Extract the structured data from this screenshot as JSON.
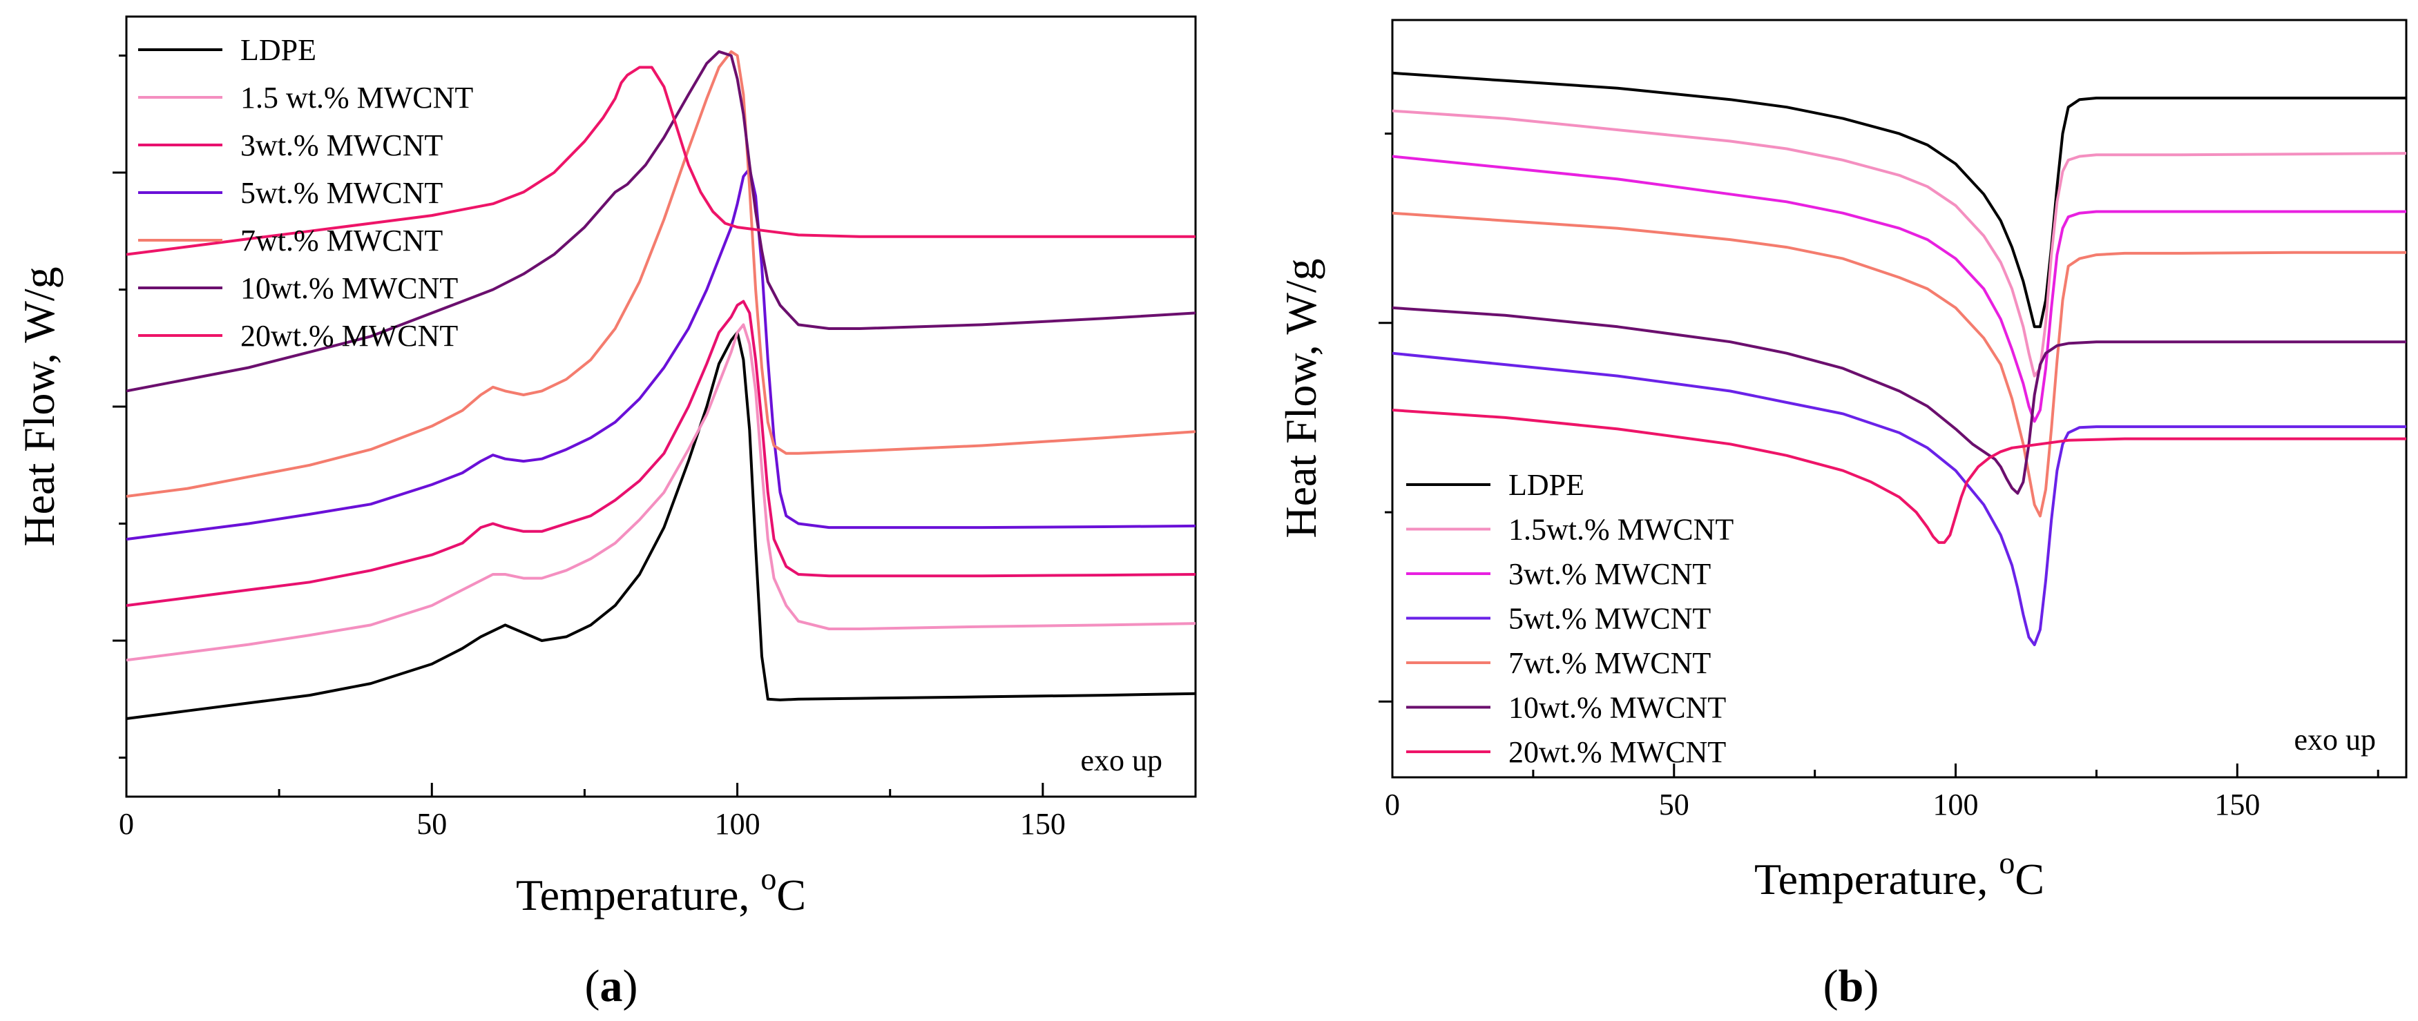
{
  "chart_data": [
    {
      "type": "line",
      "id": "panel-a",
      "panel_label": "(a)",
      "panel_label_parts": [
        "(",
        "a",
        ")"
      ],
      "xlabel": "Temperature, ",
      "xlabel_unit_sup": "o",
      "xlabel_unit": "C",
      "ylabel": "Heat Flow,  W/g",
      "xlim": [
        0,
        175
      ],
      "ylim": [
        0,
        10
      ],
      "x_ticks": [
        0,
        50,
        100,
        150
      ],
      "y_ticks": [
        2,
        5,
        8
      ],
      "y_tick_labels_shown": false,
      "annotation": "exo up",
      "legend_position": "top-left",
      "series": [
        {
          "name": "LDPE",
          "color": "#000000",
          "x": [
            0,
            10,
            20,
            30,
            40,
            50,
            55,
            58,
            62,
            65,
            68,
            72,
            76,
            80,
            84,
            88,
            92,
            95,
            97,
            99,
            100,
            101,
            102,
            103,
            104,
            105,
            107,
            110,
            120,
            140,
            160,
            175
          ],
          "y": [
            1.0,
            1.1,
            1.2,
            1.3,
            1.45,
            1.7,
            1.9,
            2.05,
            2.2,
            2.1,
            2.0,
            2.05,
            2.2,
            2.45,
            2.85,
            3.45,
            4.3,
            5.0,
            5.55,
            5.85,
            5.95,
            5.6,
            4.7,
            3.2,
            1.8,
            1.25,
            1.24,
            1.25,
            1.26,
            1.28,
            1.3,
            1.32
          ]
        },
        {
          "name": "1.5 wt.% MWCNT",
          "color": "#f48fc0",
          "x": [
            0,
            10,
            20,
            30,
            40,
            50,
            55,
            60,
            62,
            65,
            68,
            72,
            76,
            80,
            84,
            88,
            92,
            95,
            97,
            99,
            100,
            101,
            102,
            103,
            104,
            105,
            106,
            108,
            110,
            115,
            120,
            140,
            160,
            175
          ],
          "y": [
            1.75,
            1.85,
            1.95,
            2.07,
            2.2,
            2.45,
            2.65,
            2.85,
            2.85,
            2.8,
            2.8,
            2.9,
            3.05,
            3.25,
            3.55,
            3.9,
            4.45,
            4.9,
            5.3,
            5.7,
            5.95,
            6.05,
            5.8,
            5.2,
            4.2,
            3.3,
            2.8,
            2.45,
            2.25,
            2.15,
            2.15,
            2.18,
            2.2,
            2.22
          ]
        },
        {
          "name": "3wt.% MWCNT",
          "color": "#e8106e",
          "x": [
            0,
            10,
            20,
            30,
            40,
            50,
            55,
            58,
            60,
            62,
            65,
            68,
            72,
            76,
            80,
            84,
            88,
            92,
            95,
            97,
            99,
            100,
            101,
            102,
            103,
            104,
            105,
            106,
            108,
            110,
            115,
            120,
            140,
            160,
            175
          ],
          "y": [
            2.45,
            2.55,
            2.65,
            2.75,
            2.9,
            3.1,
            3.25,
            3.45,
            3.5,
            3.45,
            3.4,
            3.4,
            3.5,
            3.6,
            3.8,
            4.05,
            4.4,
            5.0,
            5.55,
            5.95,
            6.15,
            6.3,
            6.35,
            6.2,
            5.6,
            4.8,
            3.9,
            3.3,
            2.95,
            2.85,
            2.83,
            2.83,
            2.83,
            2.84,
            2.85
          ]
        },
        {
          "name": "5wt.% MWCNT",
          "color": "#6a10d8",
          "x": [
            0,
            10,
            20,
            30,
            40,
            50,
            55,
            58,
            60,
            62,
            65,
            68,
            72,
            76,
            80,
            84,
            88,
            92,
            95,
            97,
            99,
            100,
            101,
            102,
            103,
            104,
            105,
            106,
            107,
            108,
            110,
            115,
            120,
            140,
            160,
            175
          ],
          "y": [
            3.3,
            3.4,
            3.5,
            3.62,
            3.75,
            4.0,
            4.15,
            4.3,
            4.38,
            4.33,
            4.3,
            4.33,
            4.45,
            4.6,
            4.8,
            5.1,
            5.5,
            6.0,
            6.5,
            6.9,
            7.3,
            7.6,
            7.95,
            8.05,
            7.7,
            6.8,
            5.6,
            4.6,
            3.9,
            3.6,
            3.5,
            3.45,
            3.45,
            3.45,
            3.46,
            3.47
          ]
        },
        {
          "name": "7wt.% MWCNT",
          "color": "#f47c6e",
          "x": [
            0,
            10,
            20,
            30,
            40,
            50,
            55,
            58,
            60,
            62,
            65,
            68,
            72,
            76,
            80,
            84,
            88,
            92,
            95,
            97,
            99,
            100,
            101,
            102,
            103,
            104,
            105,
            106,
            108,
            110,
            120,
            140,
            160,
            175
          ],
          "y": [
            3.85,
            3.95,
            4.1,
            4.25,
            4.45,
            4.75,
            4.95,
            5.15,
            5.25,
            5.2,
            5.15,
            5.2,
            5.35,
            5.6,
            6.0,
            6.6,
            7.4,
            8.3,
            8.95,
            9.35,
            9.55,
            9.5,
            9.0,
            7.8,
            6.5,
            5.5,
            4.8,
            4.5,
            4.4,
            4.4,
            4.43,
            4.5,
            4.6,
            4.68
          ]
        },
        {
          "name": "10wt.% MWCNT",
          "color": "#6b0f6e",
          "x": [
            0,
            10,
            20,
            30,
            40,
            50,
            55,
            60,
            65,
            70,
            75,
            80,
            82,
            85,
            88,
            92,
            95,
            97,
            99,
            100,
            101,
            102,
            103,
            104,
            105,
            107,
            110,
            115,
            120,
            140,
            160,
            175
          ],
          "y": [
            5.2,
            5.35,
            5.5,
            5.7,
            5.9,
            6.2,
            6.35,
            6.5,
            6.7,
            6.95,
            7.3,
            7.75,
            7.85,
            8.1,
            8.45,
            9.0,
            9.4,
            9.55,
            9.5,
            9.2,
            8.75,
            8.1,
            7.5,
            7.0,
            6.6,
            6.3,
            6.05,
            6.0,
            6.0,
            6.05,
            6.13,
            6.2
          ]
        },
        {
          "name": "20wt.% MWCNT",
          "color": "#ee1468",
          "x": [
            0,
            10,
            20,
            30,
            40,
            50,
            60,
            65,
            70,
            75,
            78,
            80,
            81,
            82,
            84,
            86,
            88,
            90,
            92,
            94,
            96,
            98,
            100,
            105,
            110,
            120,
            140,
            160,
            175
          ],
          "y": [
            6.95,
            7.05,
            7.15,
            7.25,
            7.35,
            7.45,
            7.6,
            7.75,
            8.0,
            8.4,
            8.7,
            8.95,
            9.15,
            9.25,
            9.35,
            9.35,
            9.1,
            8.6,
            8.1,
            7.75,
            7.5,
            7.35,
            7.3,
            7.25,
            7.2,
            7.18,
            7.18,
            7.18,
            7.18
          ]
        }
      ]
    },
    {
      "type": "line",
      "id": "panel-b",
      "panel_label": "(b)",
      "panel_label_parts": [
        "(",
        "b",
        ")"
      ],
      "xlabel": "Temperature, ",
      "xlabel_unit_sup": "o",
      "xlabel_unit": "C",
      "ylabel": "Heat Flow,  W/g",
      "xlim": [
        0,
        180
      ],
      "ylim": [
        0,
        10
      ],
      "x_ticks": [
        0,
        50,
        100,
        150
      ],
      "y_ticks": [
        1,
        6,
        11
      ],
      "y_tick_labels_shown": false,
      "annotation": "exo up",
      "legend_position": "bottom-left",
      "series": [
        {
          "name": "LDPE",
          "color": "#000000",
          "x": [
            0,
            20,
            40,
            60,
            70,
            80,
            90,
            95,
            100,
            105,
            108,
            110,
            112,
            113,
            114,
            115,
            116,
            117,
            118,
            119,
            120,
            122,
            125,
            130,
            140,
            160,
            180
          ],
          "y": [
            9.3,
            9.2,
            9.1,
            8.95,
            8.85,
            8.7,
            8.5,
            8.35,
            8.1,
            7.7,
            7.35,
            7.0,
            6.55,
            6.25,
            5.95,
            5.95,
            6.3,
            7.0,
            7.8,
            8.5,
            8.85,
            8.95,
            8.97,
            8.97,
            8.97,
            8.97,
            8.97
          ]
        },
        {
          "name": "1.5wt.% MWCNT",
          "color": "#f48fc0",
          "x": [
            0,
            20,
            40,
            60,
            70,
            80,
            90,
            95,
            100,
            105,
            108,
            110,
            112,
            113,
            114,
            115,
            116,
            117,
            118,
            119,
            120,
            122,
            125,
            130,
            140,
            160,
            180
          ],
          "y": [
            8.8,
            8.7,
            8.55,
            8.4,
            8.3,
            8.15,
            7.95,
            7.8,
            7.55,
            7.15,
            6.8,
            6.45,
            5.95,
            5.6,
            5.3,
            5.4,
            6.0,
            6.9,
            7.6,
            8.0,
            8.15,
            8.2,
            8.22,
            8.22,
            8.22,
            8.23,
            8.24
          ]
        },
        {
          "name": "3wt.% MWCNT",
          "color": "#e820e0",
          "x": [
            0,
            20,
            40,
            60,
            70,
            80,
            90,
            95,
            100,
            105,
            108,
            110,
            112,
            113,
            114,
            115,
            116,
            117,
            118,
            119,
            120,
            122,
            125,
            130,
            140,
            160,
            180
          ],
          "y": [
            8.2,
            8.05,
            7.9,
            7.7,
            7.6,
            7.45,
            7.25,
            7.1,
            6.85,
            6.45,
            6.05,
            5.65,
            5.2,
            4.9,
            4.7,
            4.85,
            5.4,
            6.2,
            6.9,
            7.25,
            7.4,
            7.45,
            7.47,
            7.47,
            7.47,
            7.47,
            7.47
          ]
        },
        {
          "name": "5wt.% MWCNT",
          "color": "#6a22e8",
          "x": [
            0,
            20,
            40,
            60,
            70,
            80,
            90,
            95,
            100,
            105,
            108,
            110,
            111,
            112,
            113,
            114,
            115,
            116,
            117,
            118,
            119,
            120,
            122,
            125,
            130,
            140,
            160,
            180
          ],
          "y": [
            5.6,
            5.45,
            5.3,
            5.1,
            4.95,
            4.8,
            4.55,
            4.35,
            4.05,
            3.6,
            3.2,
            2.8,
            2.5,
            2.15,
            1.85,
            1.75,
            1.95,
            2.6,
            3.4,
            4.05,
            4.4,
            4.55,
            4.62,
            4.63,
            4.63,
            4.63,
            4.63,
            4.63
          ]
        },
        {
          "name": "7wt.% MWCNT",
          "color": "#f47c6e",
          "x": [
            0,
            20,
            40,
            60,
            70,
            80,
            90,
            95,
            100,
            105,
            108,
            110,
            112,
            113,
            114,
            115,
            116,
            117,
            118,
            119,
            120,
            122,
            125,
            130,
            140,
            160,
            180
          ],
          "y": [
            7.45,
            7.35,
            7.25,
            7.1,
            7.0,
            6.85,
            6.6,
            6.45,
            6.2,
            5.8,
            5.45,
            5.0,
            4.4,
            4.0,
            3.6,
            3.45,
            3.8,
            4.6,
            5.5,
            6.3,
            6.75,
            6.85,
            6.9,
            6.92,
            6.92,
            6.93,
            6.93
          ]
        },
        {
          "name": "10wt.% MWCNT",
          "color": "#6b0f6e",
          "x": [
            0,
            20,
            40,
            60,
            70,
            80,
            90,
            95,
            100,
            103,
            105,
            107,
            108,
            109,
            110,
            111,
            112,
            113,
            114,
            115,
            116,
            118,
            120,
            125,
            130,
            140,
            160,
            180
          ],
          "y": [
            6.2,
            6.1,
            5.95,
            5.75,
            5.6,
            5.4,
            5.1,
            4.9,
            4.6,
            4.4,
            4.3,
            4.2,
            4.1,
            3.95,
            3.82,
            3.75,
            3.9,
            4.4,
            5.05,
            5.45,
            5.6,
            5.7,
            5.73,
            5.75,
            5.75,
            5.75,
            5.75,
            5.75
          ]
        },
        {
          "name": "20wt.% MWCNT",
          "color": "#ee1468",
          "x": [
            0,
            20,
            40,
            60,
            70,
            80,
            85,
            90,
            93,
            95,
            96,
            97,
            98,
            99,
            100,
            101,
            102,
            104,
            106,
            108,
            110,
            115,
            120,
            130,
            140,
            160,
            180
          ],
          "y": [
            4.85,
            4.75,
            4.6,
            4.4,
            4.25,
            4.05,
            3.9,
            3.7,
            3.5,
            3.3,
            3.18,
            3.1,
            3.1,
            3.2,
            3.45,
            3.7,
            3.9,
            4.1,
            4.22,
            4.3,
            4.35,
            4.4,
            4.45,
            4.47,
            4.47,
            4.47,
            4.47
          ]
        }
      ]
    }
  ]
}
